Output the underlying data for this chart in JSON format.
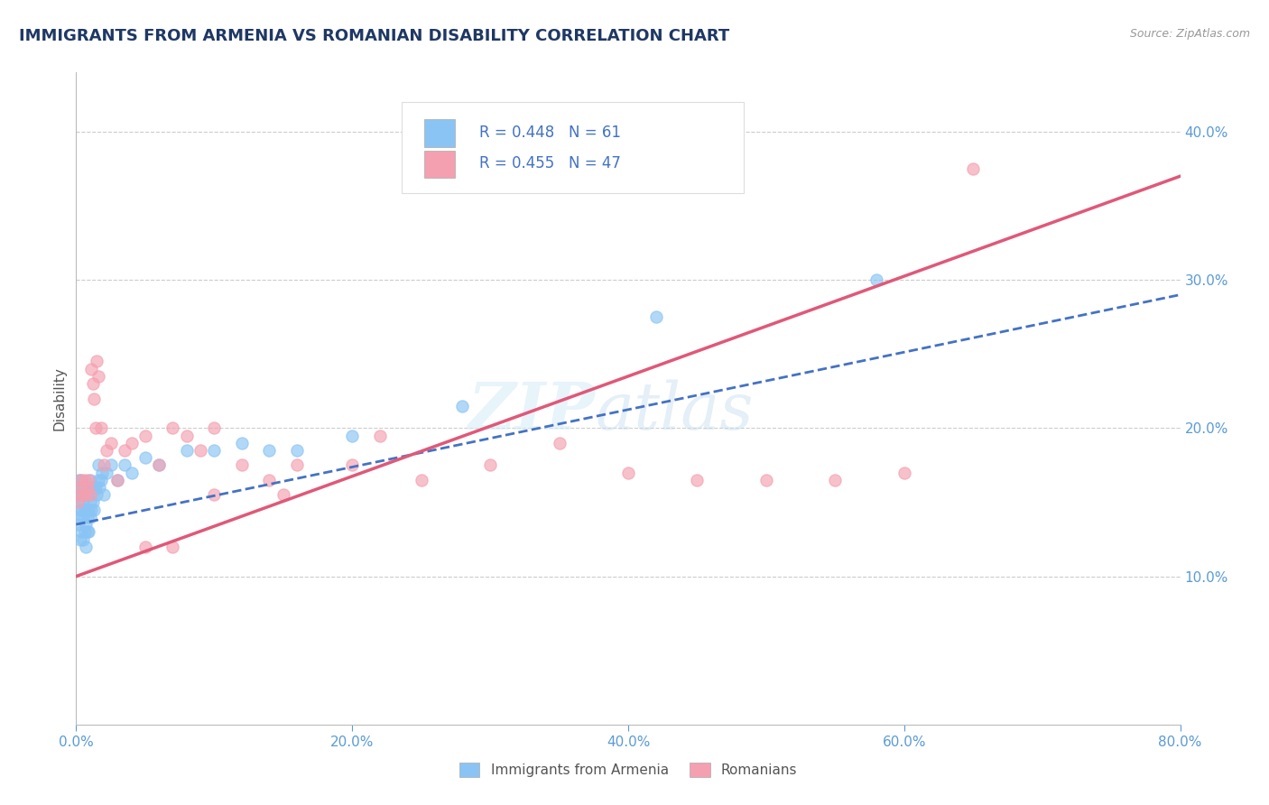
{
  "title": "IMMIGRANTS FROM ARMENIA VS ROMANIAN DISABILITY CORRELATION CHART",
  "source": "Source: ZipAtlas.com",
  "ylabel": "Disability",
  "series1_name": "Immigrants from Armenia",
  "series1_color": "#89C4F4",
  "series1_line_color": "#4472C4",
  "series1_R": 0.448,
  "series1_N": 61,
  "series2_name": "Romanians",
  "series2_color": "#F4A0B0",
  "series2_line_color": "#E05878",
  "series2_R": 0.455,
  "series2_N": 47,
  "xlim": [
    0.0,
    0.8
  ],
  "ylim": [
    0.0,
    0.44
  ],
  "yticks": [
    0.1,
    0.2,
    0.3,
    0.4
  ],
  "xticks": [
    0.0,
    0.2,
    0.4,
    0.6,
    0.8
  ],
  "background_color": "#FFFFFF",
  "grid_color": "#CCCCCC",
  "axis_label_color": "#5B9BD5",
  "title_color": "#1F3864",
  "title_fontsize": 13,
  "legend_R_color": "#4472C4",
  "series1_x": [
    0.001,
    0.001,
    0.002,
    0.002,
    0.002,
    0.003,
    0.003,
    0.003,
    0.004,
    0.004,
    0.004,
    0.004,
    0.005,
    0.005,
    0.005,
    0.005,
    0.006,
    0.006,
    0.006,
    0.007,
    0.007,
    0.007,
    0.007,
    0.008,
    0.008,
    0.008,
    0.009,
    0.009,
    0.01,
    0.01,
    0.01,
    0.011,
    0.011,
    0.012,
    0.012,
    0.013,
    0.013,
    0.014,
    0.015,
    0.016,
    0.016,
    0.017,
    0.018,
    0.019,
    0.02,
    0.022,
    0.025,
    0.03,
    0.035,
    0.04,
    0.05,
    0.06,
    0.08,
    0.1,
    0.12,
    0.14,
    0.16,
    0.2,
    0.28,
    0.42,
    0.58
  ],
  "series1_y": [
    0.14,
    0.155,
    0.135,
    0.15,
    0.165,
    0.125,
    0.145,
    0.16,
    0.13,
    0.145,
    0.155,
    0.165,
    0.125,
    0.14,
    0.15,
    0.16,
    0.13,
    0.145,
    0.155,
    0.12,
    0.135,
    0.145,
    0.155,
    0.13,
    0.14,
    0.155,
    0.13,
    0.145,
    0.14,
    0.15,
    0.165,
    0.145,
    0.155,
    0.15,
    0.16,
    0.145,
    0.16,
    0.16,
    0.155,
    0.165,
    0.175,
    0.16,
    0.165,
    0.17,
    0.155,
    0.17,
    0.175,
    0.165,
    0.175,
    0.17,
    0.18,
    0.175,
    0.185,
    0.185,
    0.19,
    0.185,
    0.185,
    0.195,
    0.215,
    0.275,
    0.3
  ],
  "series2_x": [
    0.001,
    0.002,
    0.003,
    0.004,
    0.005,
    0.006,
    0.007,
    0.008,
    0.009,
    0.01,
    0.011,
    0.012,
    0.013,
    0.014,
    0.015,
    0.016,
    0.018,
    0.02,
    0.022,
    0.025,
    0.03,
    0.035,
    0.04,
    0.05,
    0.06,
    0.07,
    0.08,
    0.09,
    0.1,
    0.12,
    0.14,
    0.16,
    0.2,
    0.22,
    0.25,
    0.3,
    0.35,
    0.4,
    0.45,
    0.5,
    0.55,
    0.6,
    0.65,
    0.1,
    0.15,
    0.05,
    0.07
  ],
  "series2_y": [
    0.15,
    0.155,
    0.165,
    0.16,
    0.155,
    0.165,
    0.155,
    0.16,
    0.165,
    0.155,
    0.24,
    0.23,
    0.22,
    0.2,
    0.245,
    0.235,
    0.2,
    0.175,
    0.185,
    0.19,
    0.165,
    0.185,
    0.19,
    0.195,
    0.175,
    0.2,
    0.195,
    0.185,
    0.2,
    0.175,
    0.165,
    0.175,
    0.175,
    0.195,
    0.165,
    0.175,
    0.19,
    0.17,
    0.165,
    0.165,
    0.165,
    0.17,
    0.375,
    0.155,
    0.155,
    0.12,
    0.12
  ],
  "line1_x0": 0.0,
  "line1_y0": 0.135,
  "line1_x1": 0.8,
  "line1_y1": 0.29,
  "line2_x0": 0.0,
  "line2_y0": 0.1,
  "line2_x1": 0.8,
  "line2_y1": 0.37
}
